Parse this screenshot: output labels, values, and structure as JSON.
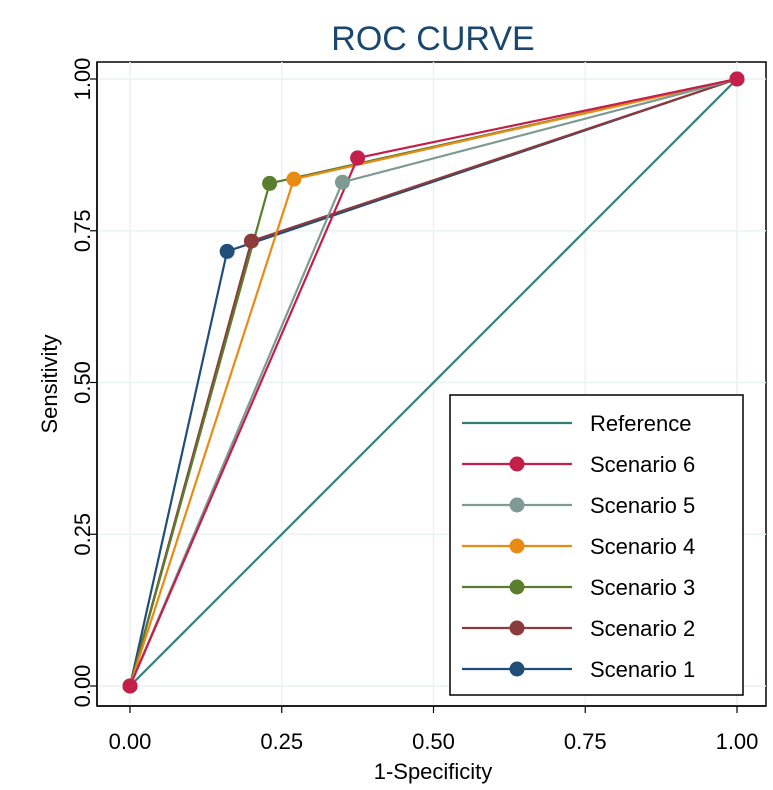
{
  "chart_data": {
    "type": "line",
    "title": "ROC CURVE",
    "xlabel": "1-Specificity",
    "ylabel": "Sensitivity",
    "xlim": [
      0,
      1
    ],
    "ylim": [
      0,
      1
    ],
    "x_ticks": [
      "0.00",
      "0.25",
      "0.50",
      "0.75",
      "1.00"
    ],
    "y_ticks": [
      "0.00",
      "0.25",
      "0.50",
      "0.75",
      "1.00"
    ],
    "grid": true,
    "legend_position": "bottom-right",
    "series": [
      {
        "name": "Reference",
        "color": "#2f7f74",
        "markers": false,
        "points": [
          [
            0,
            0
          ],
          [
            1,
            1
          ]
        ]
      },
      {
        "name": "Scenario 6",
        "color": "#c41e4a",
        "markers": true,
        "points": [
          [
            0,
            0
          ],
          [
            0.375,
            0.87
          ],
          [
            1,
            1
          ]
        ]
      },
      {
        "name": "Scenario 5",
        "color": "#7f9a93",
        "markers": true,
        "points": [
          [
            0,
            0
          ],
          [
            0.35,
            0.83
          ],
          [
            1,
            1
          ]
        ]
      },
      {
        "name": "Scenario 4",
        "color": "#e88b14",
        "markers": true,
        "points": [
          [
            0,
            0
          ],
          [
            0.27,
            0.835
          ],
          [
            1,
            1
          ]
        ]
      },
      {
        "name": "Scenario 3",
        "color": "#5b7d2e",
        "markers": true,
        "points": [
          [
            0,
            0
          ],
          [
            0.23,
            0.828
          ],
          [
            1,
            1
          ]
        ]
      },
      {
        "name": "Scenario 2",
        "color": "#8b3b3b",
        "markers": true,
        "points": [
          [
            0,
            0
          ],
          [
            0.2,
            0.733
          ],
          [
            1,
            1
          ]
        ]
      },
      {
        "name": "Scenario 1",
        "color": "#1f4e79",
        "markers": true,
        "points": [
          [
            0,
            0
          ],
          [
            0.16,
            0.716
          ],
          [
            1,
            1
          ]
        ]
      }
    ]
  }
}
